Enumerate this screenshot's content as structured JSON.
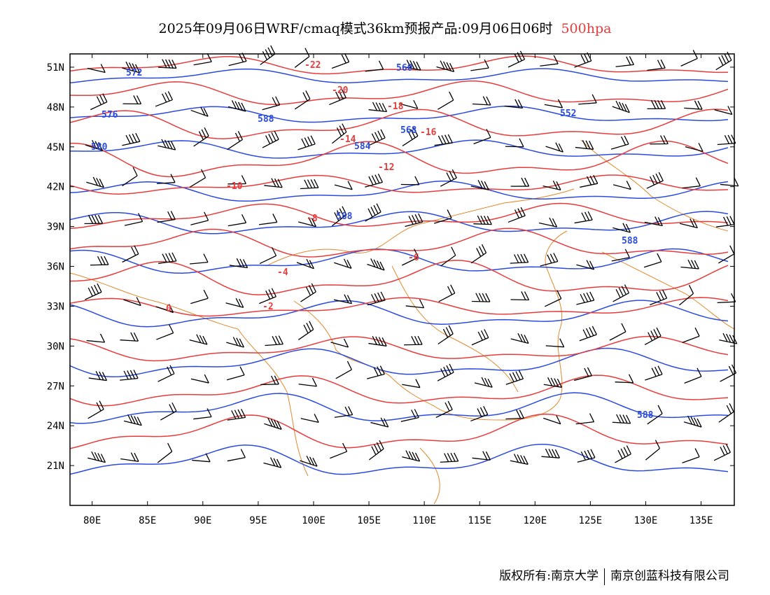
{
  "title": {
    "main": "2025年09月06日WRF/cmaq模式36km预报产品:09月06日06时",
    "level": "500hpa"
  },
  "colors": {
    "height_contour": "#2b4be0",
    "temperature_contour": "#e83c3c",
    "boundary": "#e08a2b",
    "wind_barb": "#000000"
  },
  "axes": {
    "lat_labels": [
      "51N",
      "48N",
      "45N",
      "42N",
      "39N",
      "36N",
      "33N",
      "30N",
      "27N",
      "24N",
      "21N"
    ],
    "lat_values": [
      51,
      48,
      45,
      42,
      39,
      36,
      33,
      30,
      27,
      24,
      21
    ],
    "lon_labels": [
      "80E",
      "85E",
      "90E",
      "95E",
      "100E",
      "105E",
      "110E",
      "115E",
      "120E",
      "125E",
      "130E",
      "135E"
    ],
    "lon_values": [
      80,
      85,
      90,
      95,
      100,
      105,
      110,
      115,
      120,
      125,
      130,
      135
    ],
    "lon_range": [
      78,
      138
    ],
    "lat_range": [
      18,
      52
    ]
  },
  "height_labels": [
    "572",
    "576",
    "580",
    "588",
    "560",
    "552",
    "568",
    "584",
    "588",
    "588",
    "588"
  ],
  "temperature_labels": [
    "-22",
    "-20",
    "-18",
    "-16",
    "-14",
    "-12",
    "-10",
    "-8",
    "-6",
    "-4",
    "-2",
    "0"
  ],
  "credits": {
    "left": "版权所有:南京大学",
    "right": "南京创蓝科技有限公司"
  }
}
